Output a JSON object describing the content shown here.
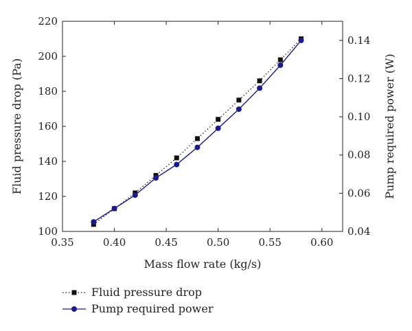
{
  "chart_data": {
    "type": "line",
    "xlabel": "Mass flow rate (kg/s)",
    "ylabel": "Fluid pressure drop (Pa)",
    "y2label": "Pump required power (W)",
    "xlim": [
      0.35,
      0.62
    ],
    "ylim": [
      100,
      220
    ],
    "y2lim": [
      0.04,
      0.15
    ],
    "xticks": [
      "0.35",
      "0.40",
      "0.45",
      "0.50",
      "0.55",
      "0.60"
    ],
    "yticks": [
      "100",
      "120",
      "140",
      "160",
      "180",
      "200",
      "220"
    ],
    "y2ticks": [
      "0.04",
      "0.06",
      "0.08",
      "0.10",
      "0.12",
      "0.14"
    ],
    "grid": false,
    "legend_position": "bottom-left",
    "series": [
      {
        "name": "Fluid pressure drop",
        "axis": "left",
        "style": "dotted",
        "marker": "square",
        "color": "#111111",
        "x": [
          0.38,
          0.4,
          0.42,
          0.44,
          0.46,
          0.48,
          0.5,
          0.52,
          0.54,
          0.56,
          0.58
        ],
        "values": [
          104,
          113,
          122,
          132,
          142,
          153,
          164,
          175,
          186,
          198,
          210
        ]
      },
      {
        "name": "Pump required power",
        "axis": "right",
        "style": "solid",
        "marker": "circle",
        "color": "#1a1a8c",
        "x": [
          0.38,
          0.4,
          0.42,
          0.44,
          0.46,
          0.48,
          0.5,
          0.52,
          0.54,
          0.56,
          0.58
        ],
        "values": [
          0.045,
          0.052,
          0.059,
          0.068,
          0.075,
          0.084,
          0.094,
          0.104,
          0.115,
          0.127,
          0.14
        ]
      }
    ]
  }
}
